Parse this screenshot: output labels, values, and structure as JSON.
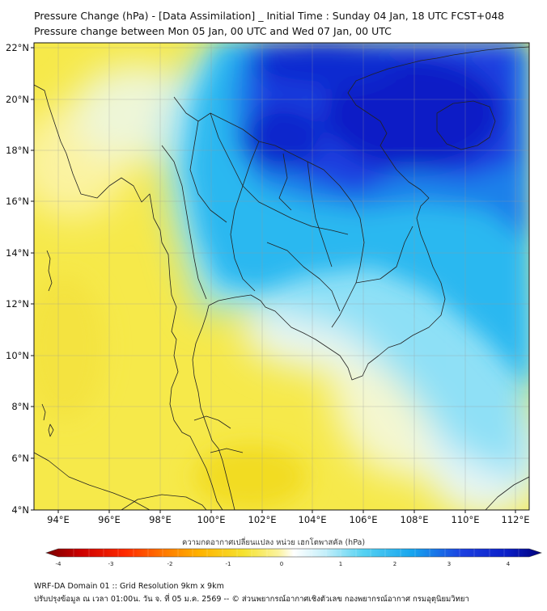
{
  "header": {
    "title_line1": "Pressure Change (hPa) - [Data Assimilation] _ Initial Time : Sunday 04 Jan, 18 UTC FCST+048",
    "title_line2": "Pressure change between Mon 05 Jan, 00 UTC and Wed 07 Jan, 00 UTC"
  },
  "map": {
    "lat_ticks": [
      "22°N",
      "20°N",
      "18°N",
      "16°N",
      "14°N",
      "12°N",
      "10°N",
      "8°N",
      "6°N",
      "4°N"
    ],
    "lon_ticks": [
      "94°E",
      "96°E",
      "98°E",
      "100°E",
      "102°E",
      "104°E",
      "106°E",
      "108°E",
      "110°E",
      "112°E"
    ],
    "lat_range": [
      4,
      22.3
    ],
    "lon_range": [
      93,
      112.5
    ],
    "colors": {
      "neg_far": "#f5e330",
      "neg_near": "#fbf3a0",
      "zero": "#e9f6fa",
      "pos_low": "#56d2f2",
      "pos_mid": "#16a4ee",
      "pos_high": "#1b3fe0",
      "pos_max": "#0b1fc8",
      "coast": "#222222"
    }
  },
  "colorbar": {
    "title": "ความกดอากาศเปลี่ยนแปลง หน่วย เฮกโตพาสคัล (hPa)",
    "min": -4,
    "max": 4,
    "tick_labels": [
      "-4",
      "-3",
      "-2",
      "-1",
      "0",
      "1",
      "2",
      "3",
      "4"
    ]
  },
  "footer": {
    "line1": "WRF-DA Domain 01 :: Grid Resolution 9km x 9km",
    "line2": "ปรับปรุงข้อมูล ณ เวลา 01:00น. วัน จ. ที่ 05 ม.ค. 2569 -- © ส่วนพยากรณ์อากาศเชิงตัวเลข กองพยากรณ์อากาศ กรมอุตุนิยมวิทยา"
  }
}
